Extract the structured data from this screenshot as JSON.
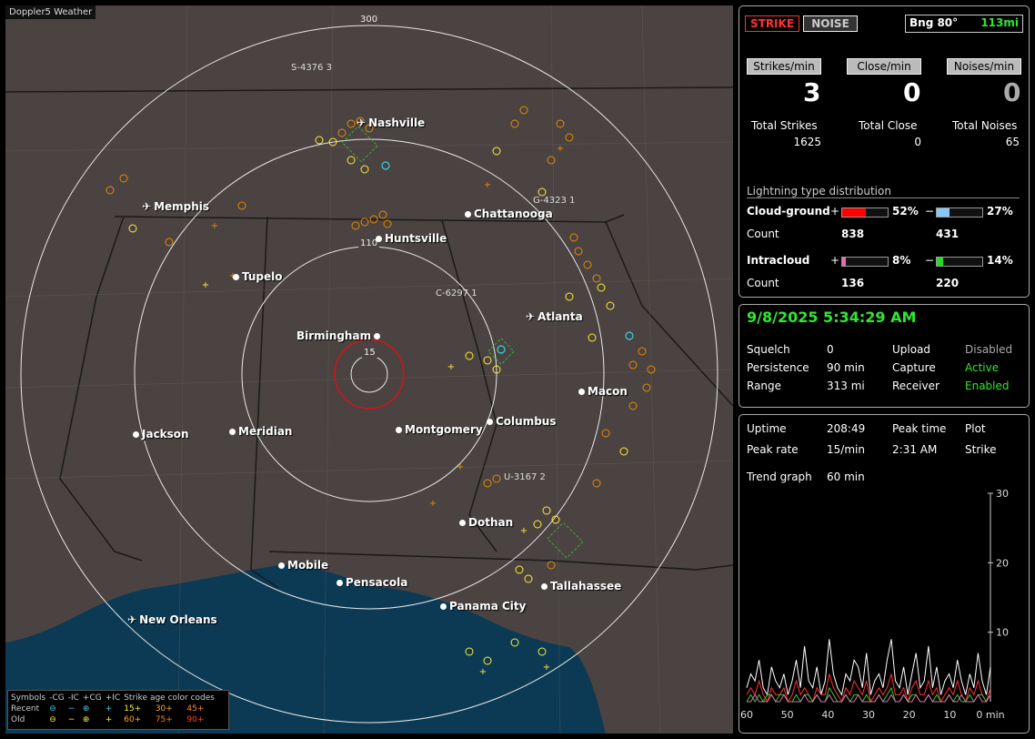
{
  "map": {
    "title": "Doppler5 Weather",
    "rings": [
      "300",
      "110",
      "15"
    ],
    "cities": [
      {
        "name": "Nashville",
        "type": "airport"
      },
      {
        "name": "Memphis",
        "type": "airport"
      },
      {
        "name": "Chattanooga",
        "type": "city"
      },
      {
        "name": "Huntsville",
        "type": "city"
      },
      {
        "name": "Tupelo",
        "type": "city"
      },
      {
        "name": "Atlanta",
        "type": "airport"
      },
      {
        "name": "Birmingham",
        "type": "city"
      },
      {
        "name": "Macon",
        "type": "city"
      },
      {
        "name": "Jackson",
        "type": "city"
      },
      {
        "name": "Meridian",
        "type": "city"
      },
      {
        "name": "Montgomery",
        "type": "city"
      },
      {
        "name": "Columbus",
        "type": "city"
      },
      {
        "name": "Dothan",
        "type": "city"
      },
      {
        "name": "Mobile",
        "type": "city"
      },
      {
        "name": "Pensacola",
        "type": "city"
      },
      {
        "name": "Tallahassee",
        "type": "city"
      },
      {
        "name": "Panama City",
        "type": "city"
      },
      {
        "name": "New Orleans",
        "type": "airport"
      }
    ],
    "storms": [
      "S-4376 3",
      "G-4323 1",
      "C-6297 1",
      "U-3167 2"
    ],
    "legend": {
      "header": [
        "Symbols",
        "-CG",
        "-IC",
        "+CG",
        "+IC",
        "Strike age color codes"
      ],
      "recent": [
        "Recent",
        "⊖",
        "−",
        "⊕",
        "+",
        "15+",
        "30+",
        "45+"
      ],
      "old": [
        "Old",
        "⊖",
        "−",
        "⊕",
        "+",
        "60+",
        "75+",
        "90+"
      ]
    }
  },
  "header": {
    "strike_btn": "STRIKE",
    "noise_btn": "NOISE",
    "bearing": "Bng 80°",
    "distance": "113mi"
  },
  "rates": [
    {
      "label": "Strikes/min",
      "value": "3"
    },
    {
      "label": "Close/min",
      "value": "0"
    },
    {
      "label": "Noises/min",
      "value": "0"
    }
  ],
  "totals": [
    {
      "label": "Total Strikes",
      "value": "1625"
    },
    {
      "label": "Total Close",
      "value": "0"
    },
    {
      "label": "Total Noises",
      "value": "65"
    }
  ],
  "distribution": {
    "title": "Lightning type distribution",
    "cg_label": "Cloud-ground",
    "ic_label": "Intracloud",
    "count_label": "Count",
    "plus": "+",
    "minus": "−",
    "cg_pos_pct": "52%",
    "cg_pos_frac": 0.52,
    "cg_pos_count": "838",
    "cg_neg_pct": "27%",
    "cg_neg_frac": 0.27,
    "cg_neg_count": "431",
    "ic_pos_pct": "8%",
    "ic_pos_frac": 0.08,
    "ic_pos_count": "136",
    "ic_neg_pct": "14%",
    "ic_neg_frac": 0.14,
    "ic_neg_count": "220",
    "colors": {
      "cg_pos": "#ff0000",
      "cg_neg": "#88c8f8",
      "ic_pos": "#e070b0",
      "ic_neg": "#22dd22"
    }
  },
  "status": {
    "datetime": "9/8/2025 5:34:29 AM",
    "squelch_label": "Squelch",
    "squelch": "0",
    "persistence_label": "Persistence",
    "persistence": "90 min",
    "range_label": "Range",
    "range": "313 mi",
    "upload_label": "Upload",
    "upload": "Disabled",
    "capture_label": "Capture",
    "capture": "Active",
    "receiver_label": "Receiver",
    "receiver": "Enabled"
  },
  "stats": {
    "uptime_label": "Uptime",
    "uptime": "208:49",
    "peak_time_label": "Peak time",
    "peak_time": "2:31 AM",
    "plot_label": "Plot",
    "plot": "Strike",
    "peak_rate_label": "Peak rate",
    "peak_rate": "15/min",
    "trend_label": "Trend graph",
    "trend": "60 min"
  },
  "chart_data": {
    "type": "line",
    "x_ticks": [
      "60",
      "50",
      "40",
      "30",
      "20",
      "10",
      "0 min"
    ],
    "y_ticks": [
      "30",
      "20",
      "10"
    ],
    "ylim": [
      0,
      30
    ],
    "xlim": [
      60,
      0
    ],
    "series": [
      {
        "color": "#ffffff",
        "values": [
          2,
          4,
          3,
          6,
          2,
          1,
          5,
          3,
          2,
          4,
          1,
          3,
          6,
          2,
          8,
          3,
          2,
          5,
          1,
          3,
          9,
          4,
          2,
          1,
          4,
          3,
          6,
          5,
          2,
          7,
          1,
          3,
          4,
          2,
          6,
          9,
          3,
          2,
          5,
          1,
          4,
          7,
          2,
          3,
          8,
          2,
          5,
          1,
          3,
          4,
          2,
          6,
          3,
          1,
          4,
          2,
          7,
          3,
          1,
          5
        ]
      },
      {
        "color": "#ff3333",
        "values": [
          1,
          2,
          1,
          3,
          1,
          0,
          2,
          1,
          1,
          2,
          0,
          1,
          3,
          1,
          2,
          1,
          0,
          2,
          1,
          1,
          4,
          2,
          1,
          0,
          2,
          1,
          3,
          2,
          1,
          3,
          0,
          1,
          2,
          1,
          2,
          4,
          1,
          1,
          2,
          0,
          2,
          3,
          1,
          1,
          3,
          1,
          2,
          0,
          1,
          2,
          1,
          3,
          1,
          0,
          2,
          1,
          3,
          1,
          0,
          2
        ]
      },
      {
        "color": "#33cc33",
        "values": [
          0,
          1,
          0,
          1,
          0,
          1,
          1,
          0,
          1,
          1,
          0,
          0,
          1,
          0,
          1,
          1,
          0,
          1,
          0,
          0,
          2,
          1,
          0,
          0,
          1,
          0,
          1,
          1,
          0,
          1,
          0,
          0,
          1,
          0,
          1,
          2,
          0,
          0,
          1,
          0,
          1,
          1,
          0,
          0,
          1,
          0,
          1,
          0,
          0,
          1,
          0,
          1,
          0,
          0,
          1,
          0,
          1,
          1,
          0,
          1
        ]
      },
      {
        "color": "#e070b0",
        "values": [
          0,
          0,
          1,
          0,
          0,
          0,
          1,
          0,
          0,
          1,
          0,
          0,
          0,
          0,
          1,
          0,
          0,
          1,
          0,
          0,
          1,
          0,
          0,
          0,
          1,
          0,
          0,
          1,
          0,
          0,
          0,
          0,
          1,
          0,
          0,
          1,
          0,
          0,
          1,
          0,
          0,
          1,
          0,
          0,
          1,
          0,
          0,
          0,
          0,
          1,
          0,
          0,
          1,
          0,
          0,
          0,
          1,
          0,
          0,
          1
        ]
      }
    ]
  }
}
